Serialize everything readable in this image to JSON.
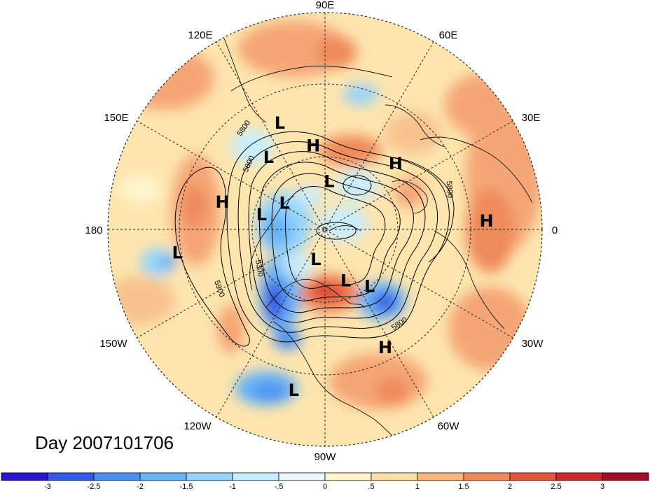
{
  "title": "Day 2007101706",
  "longitude_labels": [
    "90E",
    "60E",
    "30E",
    "0",
    "30W",
    "60W",
    "90W",
    "120W",
    "150W",
    "180",
    "150E",
    "120E"
  ],
  "pressure_centers": [
    {
      "type": "L",
      "lon": 113,
      "lat": 42
    },
    {
      "type": "L",
      "lon": 128,
      "lat": 52
    },
    {
      "type": "H",
      "lon": 98,
      "lat": 55
    },
    {
      "type": "H",
      "lon": 43,
      "lat": 50
    },
    {
      "type": "H",
      "lon": 3,
      "lat": 23
    },
    {
      "type": "H",
      "lon": 165,
      "lat": 46
    },
    {
      "type": "L",
      "lon": 147,
      "lat": 70
    },
    {
      "type": "L",
      "lon": 85,
      "lat": 70
    },
    {
      "type": "L",
      "lon": 167,
      "lat": 63
    },
    {
      "type": "L",
      "lon": -171,
      "lat": 28
    },
    {
      "type": "L",
      "lon": -107,
      "lat": 77
    },
    {
      "type": "L",
      "lon": -68,
      "lat": 67
    },
    {
      "type": "L",
      "lon": -52,
      "lat": 60
    },
    {
      "type": "H",
      "lon": -63,
      "lat": 35
    },
    {
      "type": "L",
      "lon": -101,
      "lat": 22
    }
  ],
  "contour_labels": [
    "5800",
    "5800",
    "5300",
    "5800",
    "5800",
    "5900"
  ],
  "colorbar": {
    "ticks": [
      "-3",
      "-2.5",
      "-2",
      "-1.5",
      "-1",
      "-.5",
      "0",
      ".5",
      "1",
      "1.5",
      "2",
      "2.5",
      "3"
    ],
    "colors": [
      "#2a16cc",
      "#3658e6",
      "#4d8ff0",
      "#69b4f6",
      "#96d4fb",
      "#c8edfb",
      "#eaf8fc",
      "#fff6cf",
      "#fde0a4",
      "#f7b57a",
      "#ef8a5a",
      "#e4553d",
      "#cc2a2e",
      "#a50f26"
    ]
  }
}
